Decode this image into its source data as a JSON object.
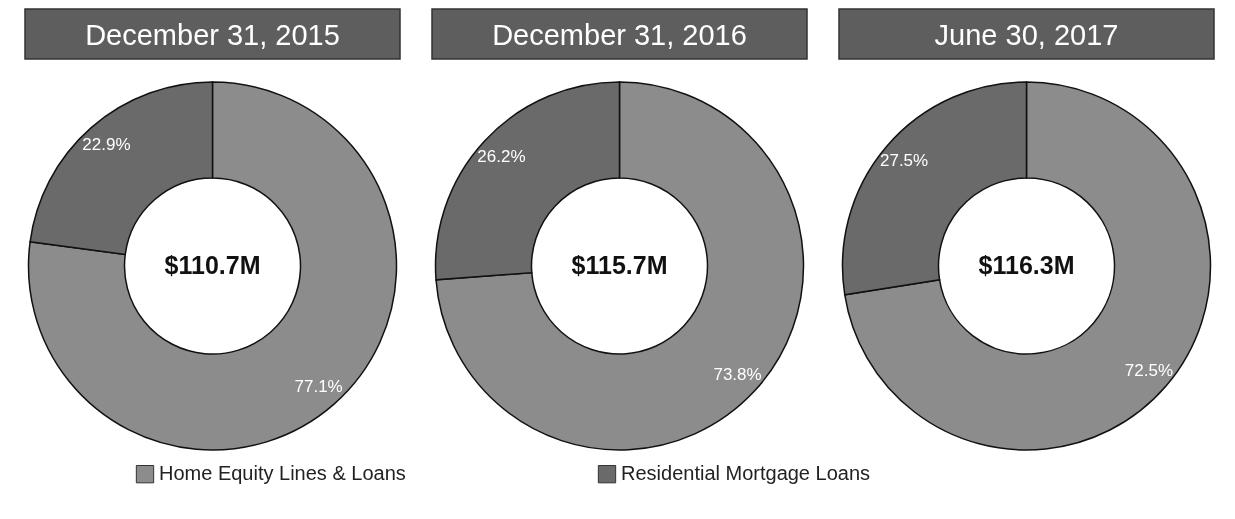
{
  "chart_data": [
    {
      "type": "donut",
      "title": "December 31, 2015",
      "categories": [
        "Home Equity Lines & Loans",
        "Residential Mortgage Loans"
      ],
      "values": [
        77.1,
        22.9
      ],
      "colors": [
        "#8c8c8c",
        "#6a6a6a"
      ],
      "value_labels": [
        "77.1%",
        "22.9%"
      ],
      "annotations": [
        "$110.7M"
      ],
      "legend": "bottom"
    },
    {
      "type": "donut",
      "title": "December 31, 2016",
      "categories": [
        null,
        null
      ],
      "values": [
        73.8,
        26.2
      ],
      "colors": [
        "#8c8c8c",
        "#6a6a6a"
      ],
      "value_labels": [
        "73.8%",
        "26.2%"
      ],
      "annotations": [
        "$115.7M"
      ]
    },
    {
      "type": "donut",
      "title": "June 30, 2017",
      "categories": [
        null,
        null
      ],
      "values": [
        72.5,
        27.5
      ],
      "colors": [
        "#8c8c8c",
        "#6a6a6a"
      ],
      "value_labels": [
        "72.5%",
        "27.5%"
      ],
      "annotations": [
        "$116.3M"
      ]
    }
  ]
}
